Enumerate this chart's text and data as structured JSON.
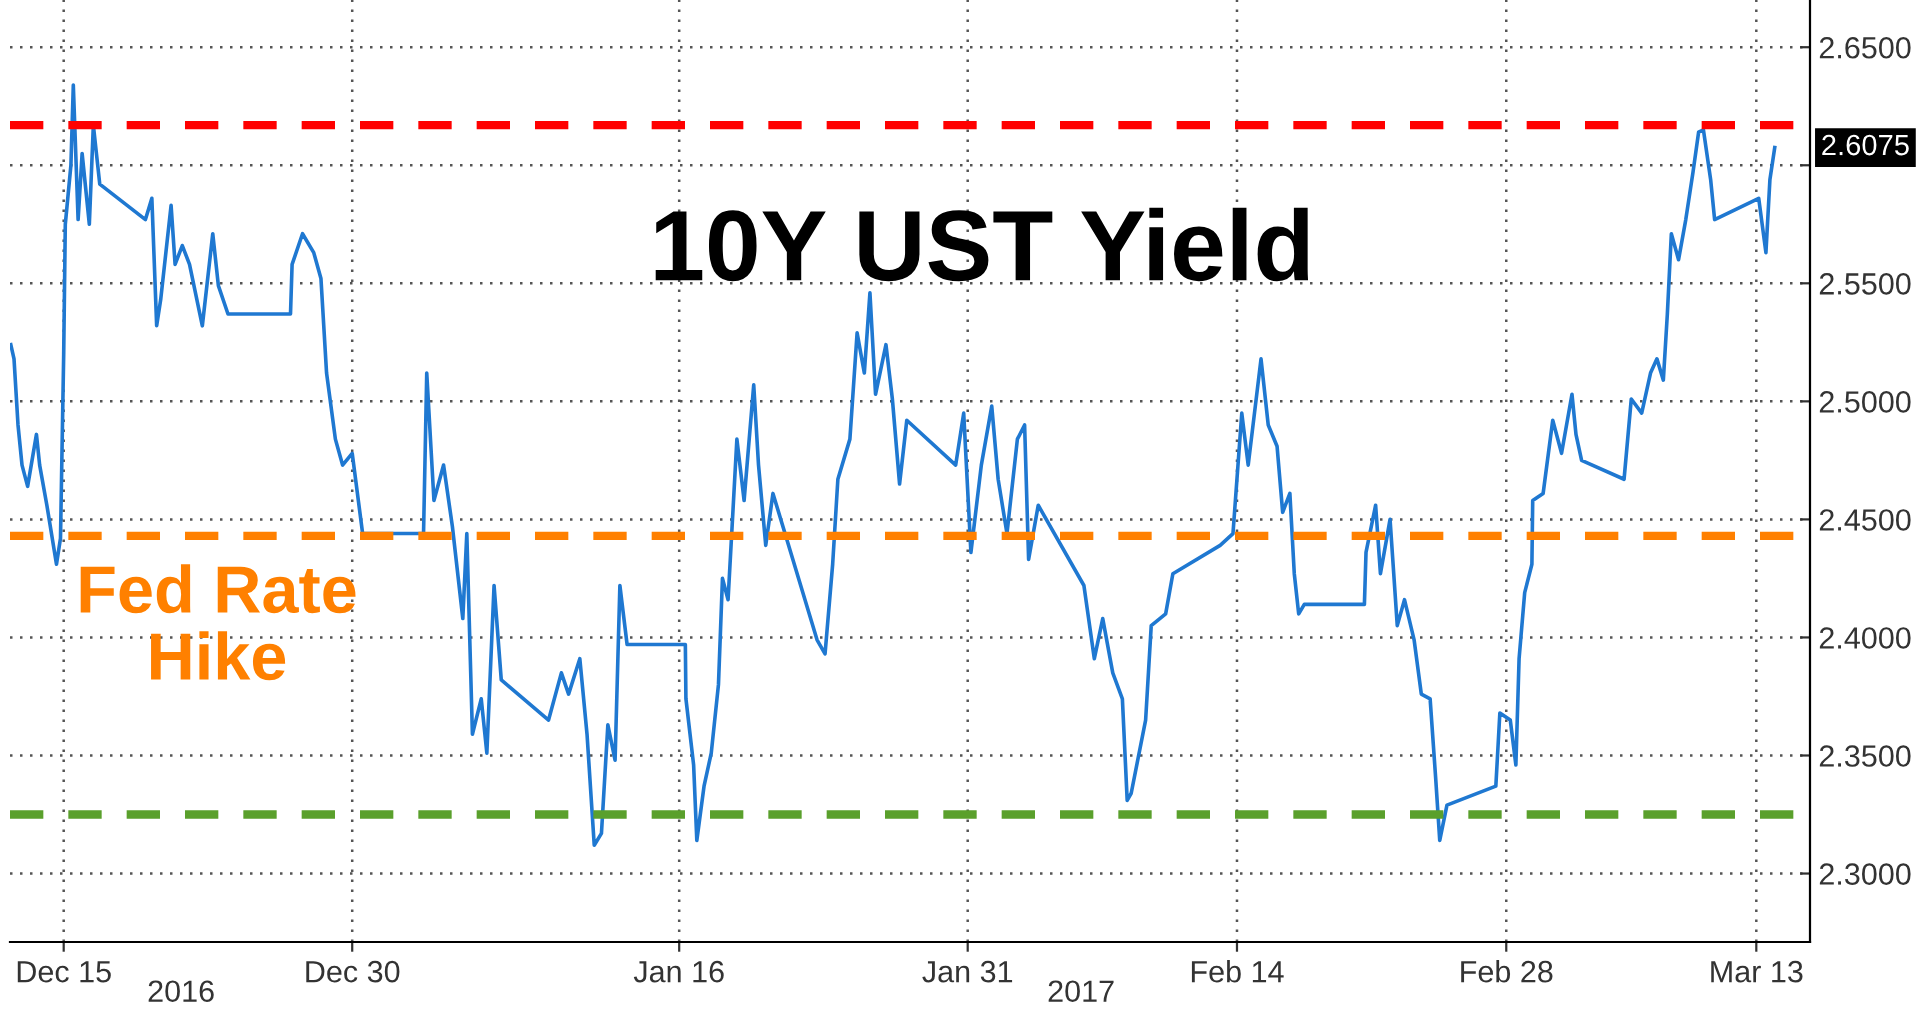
{
  "chart_data": {
    "type": "line",
    "title": "10Y UST Yield",
    "x": [
      "2016-12-12T06:00",
      "2016-12-12T10:00",
      "2016-12-12T15:00",
      "2016-12-12T20:00",
      "2016-12-13T03:00",
      "2016-12-13T14:00",
      "2016-12-13T18:00",
      "2016-12-14T03:00",
      "2016-12-14T15:00",
      "2016-12-14T20:00",
      "2016-12-15T00:00",
      "2016-12-15T02:00",
      "2016-12-15T09:00",
      "2016-12-15T12:00",
      "2016-12-15T18:00",
      "2016-12-15T23:00",
      "2016-12-16T08:00",
      "2016-12-16T13:00",
      "2016-12-16T21:00",
      "2016-12-19T06:00",
      "2016-12-19T14:00",
      "2016-12-19T20:00",
      "2016-12-20T01:00",
      "2016-12-20T14:00",
      "2016-12-20T19:00",
      "2016-12-21T04:00",
      "2016-12-21T13:00",
      "2016-12-22T05:00",
      "2016-12-22T18:00",
      "2016-12-23T01:00",
      "2016-12-23T13:00",
      "2016-12-26T19:00",
      "2016-12-26T21:00",
      "2016-12-27T10:00",
      "2016-12-28T00:00",
      "2016-12-28T09:00",
      "2016-12-28T16:00",
      "2016-12-29T03:00",
      "2016-12-29T12:00",
      "2016-12-30T00:00",
      "2016-12-30T13:00",
      "2017-01-02T17:00",
      "2017-01-02T21:00",
      "2017-01-03T06:00",
      "2017-01-03T18:00",
      "2017-01-04T05:00",
      "2017-01-04T18:00",
      "2017-01-04T23:00",
      "2017-01-05T06:00",
      "2017-01-05T17:00",
      "2017-01-06T00:00",
      "2017-01-06T09:00",
      "2017-01-06T18:00",
      "2017-01-09T05:00",
      "2017-01-09T21:00",
      "2017-01-10T06:00",
      "2017-01-10T20:00",
      "2017-01-11T05:00",
      "2017-01-11T14:00",
      "2017-01-11T23:00",
      "2017-01-12T07:00",
      "2017-01-12T16:00",
      "2017-01-12T22:00",
      "2017-01-13T07:00",
      "2017-01-16T07:41",
      "2017-01-16T08:24",
      "2017-01-16T18:00",
      "2017-01-16T22:00",
      "2017-01-17T07:00",
      "2017-01-17T16:00",
      "2017-01-18T01:00",
      "2017-01-18T06:00",
      "2017-01-18T13:00",
      "2017-01-19T00:00",
      "2017-01-19T09:00",
      "2017-01-19T21:00",
      "2017-01-20T03:00",
      "2017-01-20T12:00",
      "2017-01-20T21:00",
      "2017-01-23T04:00",
      "2017-01-23T14:00",
      "2017-01-23T23:30",
      "2017-01-24T06:00",
      "2017-01-24T21:00",
      "2017-01-25T06:00",
      "2017-01-25T15:00",
      "2017-01-25T22:00",
      "2017-01-26T05:00",
      "2017-01-26T18:00",
      "2017-01-27T02:00",
      "2017-01-27T11:00",
      "2017-01-27T20:00",
      "2017-01-30T09:00",
      "2017-01-30T19:00",
      "2017-01-31T04:00",
      "2017-01-31T17:00",
      "2017-02-01T06:00",
      "2017-02-01T14:00",
      "2017-02-02T01:00",
      "2017-02-02T14:00",
      "2017-02-02T23:00",
      "2017-02-03T04:00",
      "2017-02-03T16:00",
      "2017-02-06T01:00",
      "2017-02-06T14:00",
      "2017-02-07T00:30",
      "2017-02-07T13:00",
      "2017-02-08T01:00",
      "2017-02-08T07:00",
      "2017-02-08T12:00",
      "2017-02-09T06:00",
      "2017-02-09T13:00",
      "2017-02-10T07:00",
      "2017-02-10T16:00",
      "2017-02-13T03:00",
      "2017-02-13T19:00",
      "2017-02-14T06:00",
      "2017-02-14T14:00",
      "2017-02-15T06:00",
      "2017-02-15T15:00",
      "2017-02-16T02:00",
      "2017-02-16T09:00",
      "2017-02-16T18:00",
      "2017-02-16T23:30",
      "2017-02-17T05:00",
      "2017-02-17T12:00",
      "2017-02-20T15:00",
      "2017-02-20T17:00",
      "2017-02-21T05:00",
      "2017-02-21T11:00",
      "2017-02-21T23:00",
      "2017-02-22T08:00",
      "2017-02-22T17:00",
      "2017-02-23T05:00",
      "2017-02-23T14:00",
      "2017-02-24T01:00",
      "2017-02-24T08:00",
      "2017-02-24T13:00",
      "2017-02-24T22:00",
      "2017-02-27T11:00",
      "2017-02-27T16:00",
      "2017-02-28T05:00",
      "2017-02-28T12:00",
      "2017-02-28T16:00",
      "2017-02-28T23:00",
      "2017-03-01T08:00",
      "2017-03-01T09:00",
      "2017-03-01T22:00",
      "2017-03-02T10:00",
      "2017-03-02T21:00",
      "2017-03-03T10:00",
      "2017-03-03T15:00",
      "2017-03-03T22:00",
      "2017-03-06T03:00",
      "2017-03-06T12:00",
      "2017-03-07T01:00",
      "2017-03-07T12:00",
      "2017-03-07T20:00",
      "2017-03-08T04:00",
      "2017-03-08T09:00",
      "2017-03-08T14:00",
      "2017-03-08T23:00",
      "2017-03-09T08:00",
      "2017-03-09T17:00",
      "2017-03-10T00:00",
      "2017-03-10T06:00",
      "2017-03-10T15:00",
      "2017-03-10T20:00",
      "2017-03-13T03:00",
      "2017-03-13T12:00",
      "2017-03-13T17:00",
      "2017-03-13T23:00"
    ],
    "series": [
      {
        "color": "#1f78d1",
        "values": [
          2.524,
          2.518,
          2.49,
          2.473,
          2.464,
          2.486,
          2.473,
          2.456,
          2.431,
          2.442,
          2.52,
          2.575,
          2.6,
          2.634,
          2.577,
          2.605,
          2.575,
          2.617,
          2.592,
          2.577,
          2.586,
          2.532,
          2.543,
          2.583,
          2.558,
          2.566,
          2.558,
          2.532,
          2.571,
          2.549,
          2.537,
          2.537,
          2.558,
          2.571,
          2.563,
          2.552,
          2.512,
          2.484,
          2.473,
          2.478,
          2.444,
          2.444,
          2.512,
          2.458,
          2.473,
          2.447,
          2.408,
          2.444,
          2.359,
          2.374,
          2.351,
          2.422,
          2.382,
          2.365,
          2.385,
          2.376,
          2.391,
          2.359,
          2.312,
          2.317,
          2.363,
          2.348,
          2.422,
          2.397,
          2.397,
          2.374,
          2.346,
          2.314,
          2.337,
          2.351,
          2.38,
          2.425,
          2.416,
          2.484,
          2.458,
          2.507,
          2.473,
          2.439,
          2.461,
          2.399,
          2.393,
          2.431,
          2.467,
          2.484,
          2.529,
          2.512,
          2.546,
          2.503,
          2.524,
          2.501,
          2.465,
          2.492,
          2.473,
          2.495,
          2.436,
          2.473,
          2.498,
          2.467,
          2.444,
          2.484,
          2.49,
          2.433,
          2.456,
          2.422,
          2.391,
          2.408,
          2.385,
          2.374,
          2.331,
          2.334,
          2.365,
          2.405,
          2.41,
          2.427,
          2.439,
          2.444,
          2.495,
          2.473,
          2.518,
          2.49,
          2.481,
          2.453,
          2.461,
          2.427,
          2.41,
          2.414,
          2.414,
          2.436,
          2.456,
          2.427,
          2.45,
          2.405,
          2.416,
          2.399,
          2.376,
          2.374,
          2.34,
          2.314,
          2.329,
          2.337,
          2.368,
          2.365,
          2.346,
          2.391,
          2.419,
          2.431,
          2.458,
          2.461,
          2.492,
          2.478,
          2.503,
          2.486,
          2.475,
          2.467,
          2.501,
          2.495,
          2.512,
          2.518,
          2.509,
          2.537,
          2.571,
          2.56,
          2.577,
          2.597,
          2.614,
          2.615,
          2.594,
          2.577,
          2.586,
          2.563,
          2.594,
          2.6075
        ]
      }
    ],
    "xlim": [
      "2016-12-12T05:00",
      "2017-03-15T19:00"
    ],
    "xticks": [
      {
        "value": "2016-12-15",
        "label": "Dec 15"
      },
      {
        "value": "2016-12-30",
        "label": "Dec 30"
      },
      {
        "value": "2017-01-16",
        "label": "Jan 16"
      },
      {
        "value": "2017-01-31",
        "label": "Jan 31"
      },
      {
        "value": "2017-02-14",
        "label": "Feb 14"
      },
      {
        "value": "2017-02-28",
        "label": "Feb 28"
      },
      {
        "value": "2017-03-13",
        "label": "Mar 13"
      }
    ],
    "ylim": [
      2.271,
      2.67
    ],
    "yticks": [
      {
        "value": 2.3,
        "label": "2.3000"
      },
      {
        "value": 2.35,
        "label": "2.3500"
      },
      {
        "value": 2.4,
        "label": "2.4000"
      },
      {
        "value": 2.45,
        "label": "2.4500"
      },
      {
        "value": 2.5,
        "label": "2.5000"
      },
      {
        "value": 2.55,
        "label": "2.5500"
      },
      {
        "value": 2.6,
        "label": null
      },
      {
        "value": 2.65,
        "label": "2.6500"
      }
    ],
    "ref_lines": [
      {
        "axis": "y",
        "value": 2.617,
        "color": "#ff0000",
        "line_style": "dashed"
      },
      {
        "axis": "y",
        "value": 2.443,
        "color": "#ff8000",
        "line_style": "dashed",
        "label": "Fed Rate Hike"
      },
      {
        "axis": "y",
        "value": 2.325,
        "color": "#5aa02c",
        "line_style": "dashed"
      }
    ],
    "annotations": [
      "2016",
      "2017",
      {
        "text": "2.6075",
        "x": "2017-03-13T23:00",
        "y": 2.6075
      }
    ],
    "grid": true,
    "legend": false,
    "marker": "none",
    "line_style": "solid"
  }
}
